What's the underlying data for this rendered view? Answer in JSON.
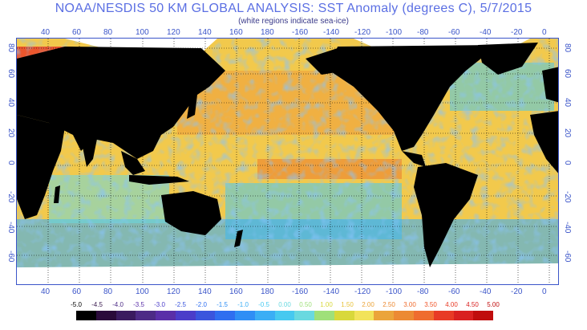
{
  "title": "NOAA/NESDIS 50 KM GLOBAL ANALYSIS: SST Anomaly (degrees C), 5/7/2015",
  "subtitle": "(white regions indicate sea-ice)",
  "longitude_labels": [
    "40",
    "60",
    "80",
    "100",
    "120",
    "140",
    "160",
    "180",
    "-160",
    "-140",
    "-120",
    "-100",
    "-80",
    "-60",
    "-40",
    "-20",
    "0"
  ],
  "latitude_labels": [
    "80",
    "60",
    "40",
    "20",
    "0",
    "-20",
    "-40",
    "-60"
  ],
  "color_scale": {
    "labels": [
      "-5.0",
      "-4.5",
      "-4.0",
      "-3.5",
      "-3.0",
      "-2.5",
      "-2.0",
      "-1.5",
      "-1.0",
      "-0.5",
      "0.00",
      "0.50",
      "1.00",
      "1.50",
      "2.00",
      "2.50",
      "3.00",
      "3.50",
      "4.00",
      "4.50",
      "5.00"
    ],
    "label_colors": [
      "#000000",
      "#3a1b4f",
      "#4d2b86",
      "#5a2fa8",
      "#4b3dc9",
      "#3a55dd",
      "#2f6ef0",
      "#2f8ef5",
      "#3aaef5",
      "#46c9f0",
      "#69d9e0",
      "#9fe07a",
      "#d8d83b",
      "#e8c23a",
      "#eba43a",
      "#ec8a33",
      "#ef6c2e",
      "#f0552a",
      "#e83a25",
      "#d92020",
      "#c00d0d"
    ],
    "colors": [
      "#000000",
      "#2a0b3a",
      "#3a1b5f",
      "#4d2b86",
      "#5a2fa8",
      "#4b3dc9",
      "#3a55dd",
      "#2f6ef0",
      "#2f8ef5",
      "#3aaef5",
      "#46c9f0",
      "#69d9e0",
      "#9fe07a",
      "#d8d83b",
      "#f2e35a",
      "#eba43a",
      "#ec8a33",
      "#ef6c2e",
      "#e83a25",
      "#d92020",
      "#c00d0d"
    ]
  },
  "map_colors": {
    "land": "#000000",
    "sea_ice": "#ffffff",
    "ocean_base": "#f2c94c",
    "grid": "#000000",
    "frame": "#3b55c9"
  }
}
